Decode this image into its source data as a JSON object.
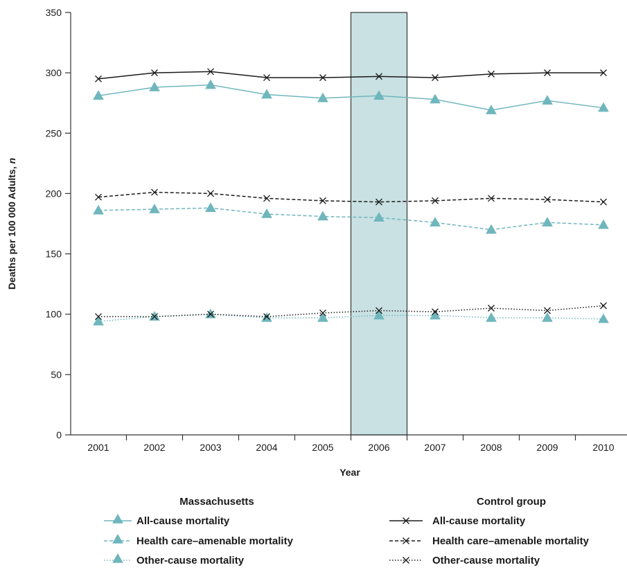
{
  "chart_data": {
    "type": "line",
    "xlabel": "Year",
    "ylabel": "Deaths per 100 000 Adults, ",
    "ylabel_italic": "n",
    "x": [
      "2001",
      "2002",
      "2003",
      "2004",
      "2005",
      "2006",
      "2007",
      "2008",
      "2009",
      "2010"
    ],
    "ylim": [
      0,
      350
    ],
    "yticks": [
      "0",
      "50",
      "100",
      "150",
      "200",
      "250",
      "300",
      "350"
    ],
    "highlight_band": {
      "x": "2006"
    },
    "colors": {
      "massachusetts": "#6fb6bd",
      "control": "#1a1a1a",
      "band_fill": "#c9e1e3",
      "band_stroke": "#333333"
    },
    "series": [
      {
        "group": "Massachusetts",
        "name": "All-cause mortality",
        "marker": "triangle",
        "dash": "solid",
        "values": [
          281,
          288,
          290,
          282,
          279,
          281,
          278,
          269,
          277,
          271
        ]
      },
      {
        "group": "Massachusetts",
        "name": "Health care–amenable mortality",
        "marker": "triangle",
        "dash": "dashed",
        "values": [
          186,
          187,
          188,
          183,
          181,
          180,
          176,
          170,
          176,
          174
        ]
      },
      {
        "group": "Massachusetts",
        "name": "Other-cause mortality",
        "marker": "triangle",
        "dash": "dotted",
        "values": [
          94,
          98,
          100,
          97,
          97,
          99,
          99,
          97,
          97,
          96
        ]
      },
      {
        "group": "Control group",
        "name": "All-cause mortality",
        "marker": "x",
        "dash": "solid",
        "values": [
          295,
          300,
          301,
          296,
          296,
          297,
          296,
          299,
          300,
          300
        ]
      },
      {
        "group": "Control group",
        "name": "Health care–amenable mortality",
        "marker": "x",
        "dash": "dashed",
        "values": [
          197,
          201,
          200,
          196,
          194,
          193,
          194,
          196,
          195,
          193
        ]
      },
      {
        "group": "Control group",
        "name": "Other-cause mortality",
        "marker": "x",
        "dash": "dotted",
        "values": [
          98,
          98,
          100,
          98,
          101,
          103,
          102,
          105,
          103,
          107
        ]
      }
    ],
    "legend": {
      "massachusetts_heading": "Massachusetts",
      "control_heading": "Control group",
      "massachusetts_items": [
        "All-cause mortality",
        "Health care–amenable mortality",
        "Other-cause mortality"
      ],
      "control_items": [
        "All-cause mortality",
        "Health care–amenable mortality",
        "Other-cause mortality"
      ],
      "placement": "bottom"
    }
  }
}
